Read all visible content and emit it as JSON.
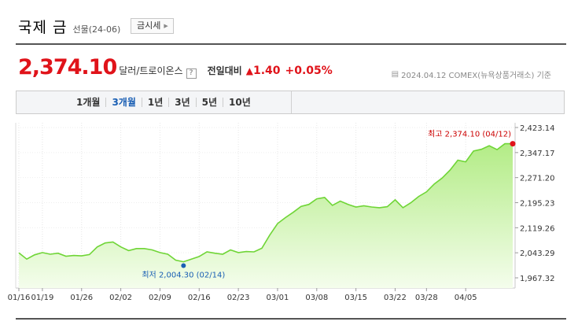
{
  "header": {
    "title": "국제 금",
    "subtitle": "선물(24-06)",
    "market_button": "금시세"
  },
  "quote": {
    "price": "2,374.10",
    "unit": "달러/트로이온스",
    "help": "?",
    "change_label": "전일대비",
    "change_arrow": "▲",
    "change": "1.40",
    "change_pct": "+0.05%",
    "date_info": "2024.04.12  COMEX(뉴욕상품거래소) 기준"
  },
  "periods": {
    "items": [
      "1개월",
      "3개월",
      "1년",
      "3년",
      "5년",
      "10년"
    ],
    "active": "3개월"
  },
  "chart_data": {
    "type": "area",
    "y_ticks": [
      "2,423.14",
      "2,347.17",
      "2,271.20",
      "2,195.23",
      "2,119.26",
      "2,043.29",
      "1,967.32"
    ],
    "ylim": [
      1967.32,
      2423.14
    ],
    "x_ticks": [
      "01/16",
      "01/19",
      "01/26",
      "02/02",
      "02/09",
      "02/16",
      "02/23",
      "03/01",
      "03/08",
      "03/15",
      "03/22",
      "03/28",
      "04/05"
    ],
    "x_tick_index": [
      0,
      3,
      8,
      13,
      18,
      23,
      28,
      33,
      38,
      43,
      48,
      52,
      57
    ],
    "values": [
      2043,
      2024,
      2037,
      2044,
      2039,
      2042,
      2033,
      2035,
      2034,
      2038,
      2061,
      2073,
      2076,
      2061,
      2050,
      2056,
      2056,
      2052,
      2044,
      2039,
      2021,
      2016,
      2024,
      2032,
      2046,
      2042,
      2039,
      2052,
      2044,
      2047,
      2046,
      2057,
      2097,
      2132,
      2150,
      2166,
      2184,
      2190,
      2207,
      2211,
      2187,
      2200,
      2190,
      2182,
      2186,
      2182,
      2180,
      2183,
      2204,
      2180,
      2195,
      2214,
      2228,
      2252,
      2270,
      2294,
      2324,
      2319,
      2352,
      2357,
      2368,
      2356,
      2374,
      2374
    ],
    "high": {
      "label": "최고",
      "value": "2,374.10",
      "date": "(04/12)",
      "index": 63
    },
    "low": {
      "label": "최저",
      "value": "2,004.30",
      "date": "(02/14)",
      "index": 21,
      "y": 2004.3
    },
    "colors": {
      "line": "#6fd536",
      "fill_top": "#b3ec86",
      "fill_bottom": "#f4fdec",
      "high": "#e0131a",
      "low": "#1a5fb4"
    }
  }
}
